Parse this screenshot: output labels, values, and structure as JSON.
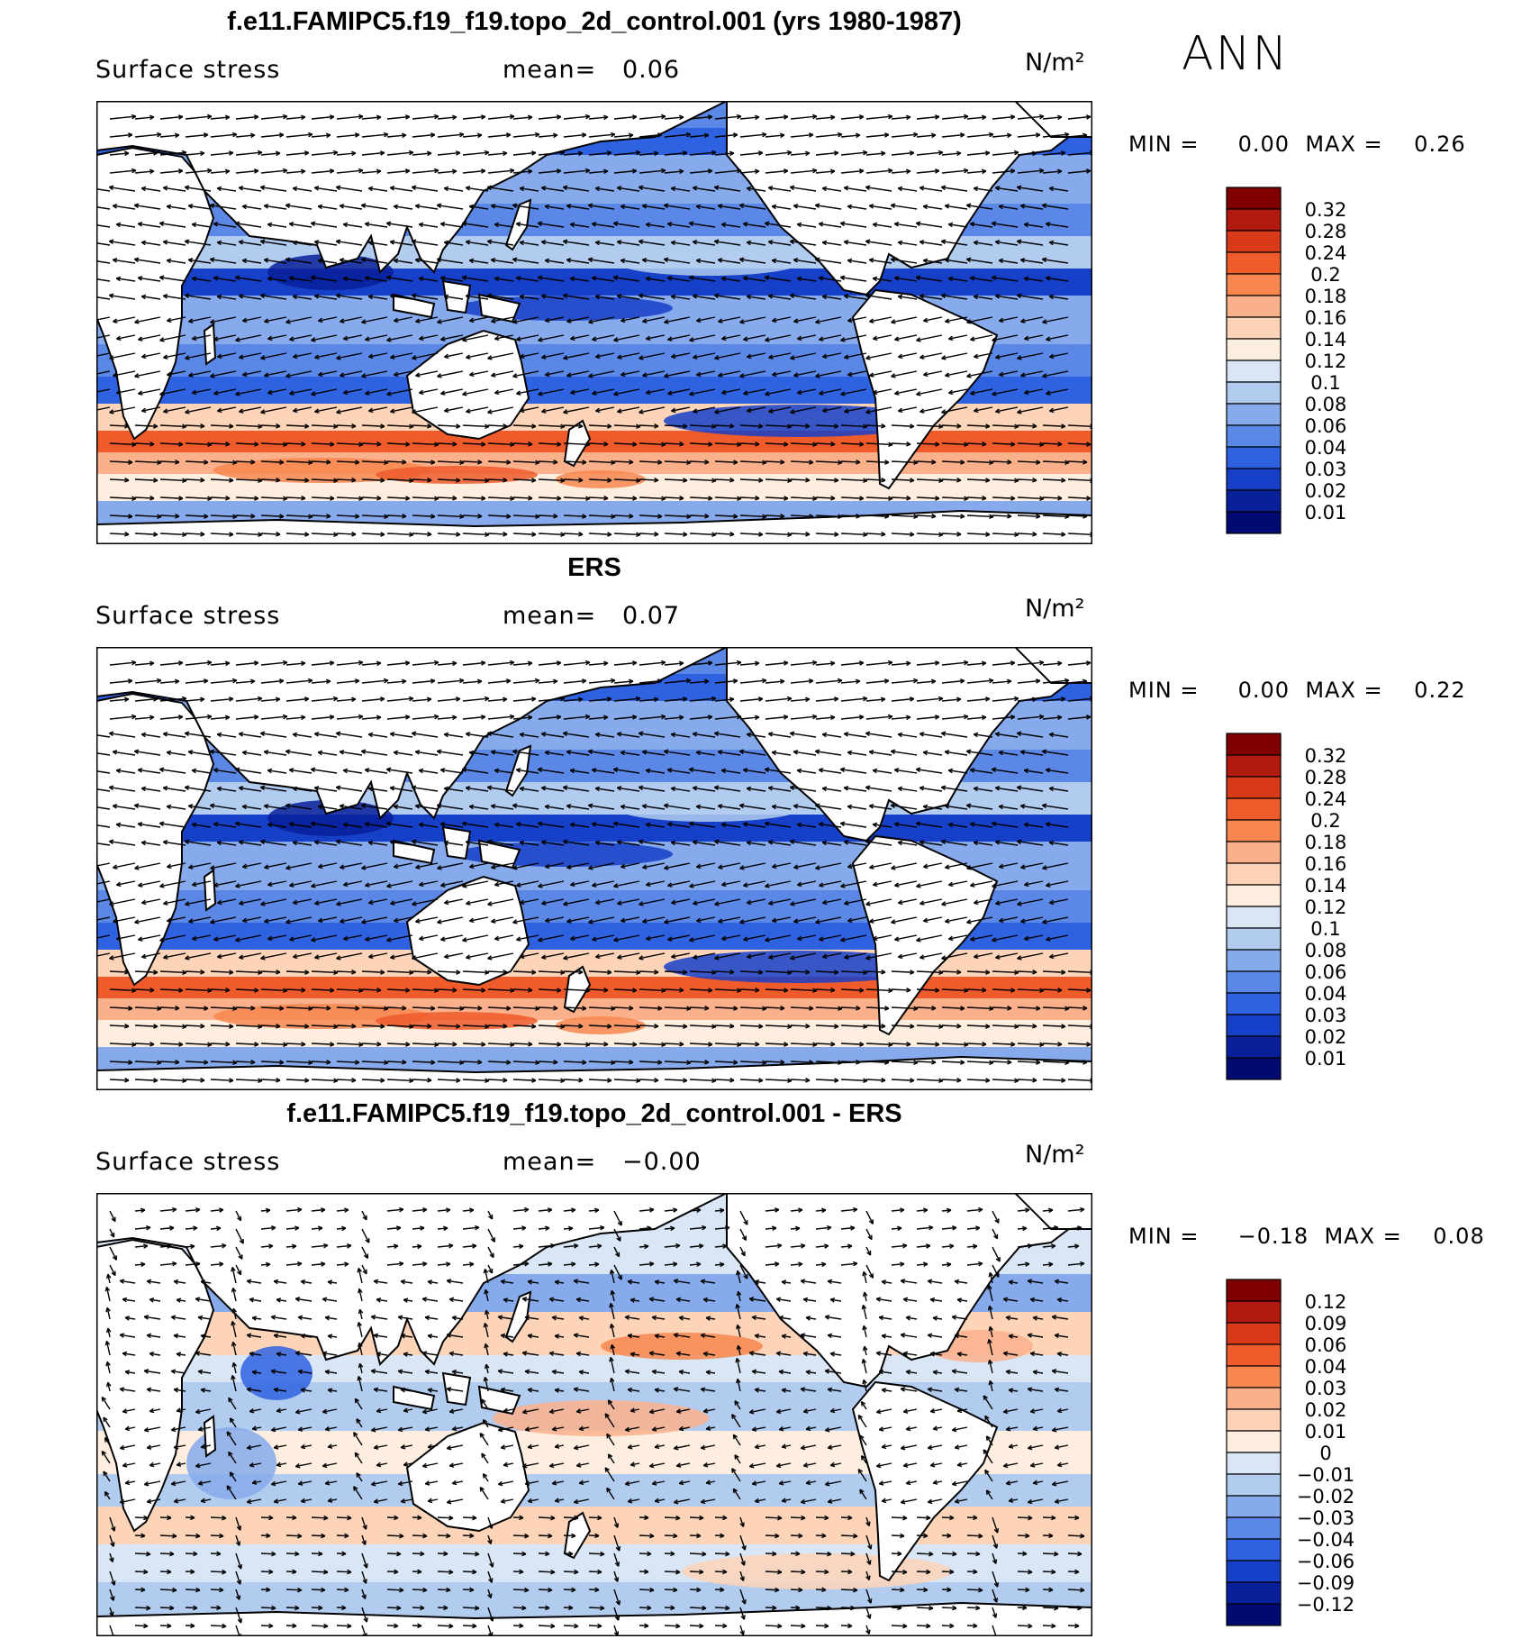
{
  "season": "ANN",
  "panels": [
    {
      "title": "f.e11.FAMIPC5.f19_f19.topo_2d_control.001 (yrs 1980-1987)",
      "variable": "Surface stress",
      "mean_label": "mean=",
      "mean_value": "0.06",
      "units": "N/m²",
      "min_label": "MIN =",
      "min_value": "0.00",
      "max_label": "MAX =",
      "max_value": "0.26",
      "colorbar_labels": [
        "0.32",
        "0.28",
        "0.24",
        "0.2",
        "0.18",
        "0.16",
        "0.14",
        "0.12",
        "0.1",
        "0.08",
        "0.06",
        "0.04",
        "0.03",
        "0.02",
        "0.01"
      ]
    },
    {
      "title": "ERS",
      "variable": "Surface stress",
      "mean_label": "mean=",
      "mean_value": "0.07",
      "units": "N/m²",
      "min_label": "MIN =",
      "min_value": "0.00",
      "max_label": "MAX =",
      "max_value": "0.22",
      "colorbar_labels": [
        "0.32",
        "0.28",
        "0.24",
        "0.2",
        "0.18",
        "0.16",
        "0.14",
        "0.12",
        "0.1",
        "0.08",
        "0.06",
        "0.04",
        "0.03",
        "0.02",
        "0.01"
      ]
    },
    {
      "title": "f.e11.FAMIPC5.f19_f19.topo_2d_control.001 - ERS",
      "variable": "Surface stress",
      "mean_label": "mean=",
      "mean_value": "−0.00",
      "units": "N/m²",
      "min_label": "MIN =",
      "min_value": "−0.18",
      "max_label": "MAX =",
      "max_value": "0.08",
      "colorbar_labels": [
        "0.12",
        "0.09",
        "0.06",
        "0.04",
        "0.03",
        "0.02",
        "0.01",
        "0",
        "−0.01",
        "−0.02",
        "−0.03",
        "−0.04",
        "−0.06",
        "−0.09",
        "−0.12"
      ]
    }
  ],
  "colors": {
    "abs_scale": [
      "#800000",
      "#b01a10",
      "#d83a1a",
      "#ef5b2b",
      "#f7874f",
      "#fbb08c",
      "#fdd4b8",
      "#fdeee0",
      "#d8e6f6",
      "#b2ccf0",
      "#86aaeb",
      "#5b88e6",
      "#2f62e0",
      "#1640c8",
      "#08209a",
      "#000a70"
    ],
    "diff_scale": [
      "#800000",
      "#b01a10",
      "#d83a1a",
      "#ef5b2b",
      "#f7874f",
      "#fbb08c",
      "#fdd4b8",
      "#fdeee0",
      "#d8e6f6",
      "#b2ccf0",
      "#86aaeb",
      "#5b88e6",
      "#2f62e0",
      "#1640c8",
      "#08209a",
      "#000a70"
    ],
    "land": "#ffffff",
    "coast": "#000000"
  }
}
